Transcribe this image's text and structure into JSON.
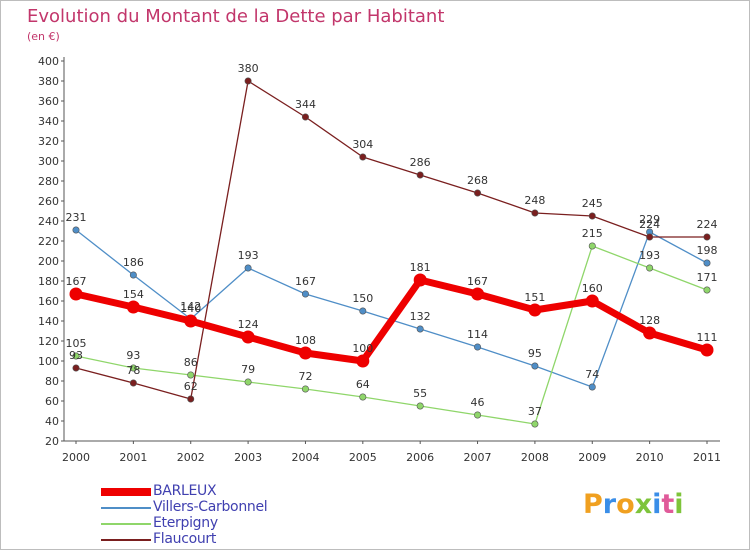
{
  "chart_data": {
    "type": "line",
    "title": "Evolution du Montant de la Dette par Habitant",
    "subtitle": "(en €)",
    "xlabel": "",
    "ylabel": "",
    "x": [
      "2000",
      "2001",
      "2002",
      "2003",
      "2004",
      "2005",
      "2006",
      "2007",
      "2008",
      "2009",
      "2010",
      "2011"
    ],
    "ylim": [
      20,
      400
    ],
    "ytick_step": 20,
    "grid": false,
    "legend_position": "bottom-left",
    "series": [
      {
        "name": "BARLEUX",
        "color": "#ee0000",
        "values": [
          167,
          154,
          140,
          124,
          108,
          100,
          181,
          167,
          151,
          160,
          128,
          111
        ],
        "labels": [
          "167",
          "154",
          "140",
          "124",
          "108",
          "100",
          "181",
          "167",
          "151",
          "160",
          "128",
          "111"
        ]
      },
      {
        "name": "Villers-Carbonnel",
        "color": "#4f8ec7",
        "values": [
          231,
          186,
          142,
          193,
          167,
          150,
          132,
          114,
          95,
          74,
          229,
          198
        ],
        "labels": [
          "231",
          "186",
          "142",
          "193",
          "167",
          "150",
          "132",
          "114",
          "95",
          "74",
          "229",
          "198"
        ]
      },
      {
        "name": "Eterpigny",
        "color": "#8fd66a",
        "values": [
          105,
          93,
          86,
          79,
          72,
          64,
          55,
          46,
          37,
          215,
          193,
          171
        ],
        "labels": [
          "105",
          "93",
          "86",
          "79",
          "72",
          "64",
          "55",
          "46",
          "37",
          "215",
          "193",
          "171"
        ]
      },
      {
        "name": "Flaucourt",
        "color": "#7a1f1f",
        "values": [
          93,
          78,
          62,
          380,
          344,
          304,
          286,
          268,
          248,
          245,
          224,
          224
        ],
        "labels": [
          "93",
          "78",
          "62",
          "380",
          "344",
          "304",
          "286",
          "268",
          "248",
          "245",
          "224",
          "224"
        ]
      }
    ]
  },
  "logo": {
    "letters": [
      "P",
      "r",
      "o",
      "x",
      "i",
      "t",
      "i"
    ],
    "colors": [
      "#f0a020",
      "#3a8ee8",
      "#f0a020",
      "#7ec43a",
      "#3a8ee8",
      "#e05a9a",
      "#7ec43a"
    ]
  }
}
